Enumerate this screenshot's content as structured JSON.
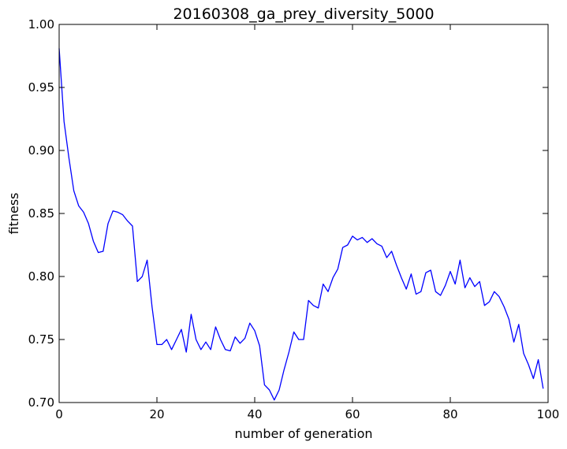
{
  "chart_data": {
    "type": "line",
    "title": "20160308_ga_prey_diversity_5000",
    "xlabel": "number of generation",
    "ylabel": "fitness",
    "xlim": [
      0,
      100
    ],
    "ylim": [
      0.7,
      1.0
    ],
    "xticks": [
      0,
      20,
      40,
      60,
      80,
      100
    ],
    "xtick_labels": [
      "0",
      "20",
      "40",
      "60",
      "80",
      "100"
    ],
    "yticks": [
      0.7,
      0.75,
      0.8,
      0.85,
      0.9,
      0.95,
      1.0
    ],
    "ytick_labels": [
      "0.70",
      "0.75",
      "0.80",
      "0.85",
      "0.90",
      "0.95",
      "1.00"
    ],
    "grid": false,
    "line_color": "#0000ff",
    "x": [
      0,
      1,
      2,
      3,
      4,
      5,
      6,
      7,
      8,
      9,
      10,
      11,
      12,
      13,
      14,
      15,
      16,
      17,
      18,
      19,
      20,
      21,
      22,
      23,
      24,
      25,
      26,
      27,
      28,
      29,
      30,
      31,
      32,
      33,
      34,
      35,
      36,
      37,
      38,
      39,
      40,
      41,
      42,
      43,
      44,
      45,
      46,
      47,
      48,
      49,
      50,
      51,
      52,
      53,
      54,
      55,
      56,
      57,
      58,
      59,
      60,
      61,
      62,
      63,
      64,
      65,
      66,
      67,
      68,
      69,
      70,
      71,
      72,
      73,
      74,
      75,
      76,
      77,
      78,
      79,
      80,
      81,
      82,
      83,
      84,
      85,
      86,
      87,
      88,
      89,
      90,
      91,
      92,
      93,
      94,
      95,
      96,
      97,
      98,
      99
    ],
    "values": [
      0.981,
      0.923,
      0.894,
      0.868,
      0.856,
      0.851,
      0.842,
      0.828,
      0.819,
      0.82,
      0.842,
      0.852,
      0.851,
      0.849,
      0.844,
      0.84,
      0.796,
      0.8,
      0.813,
      0.776,
      0.746,
      0.746,
      0.75,
      0.742,
      0.75,
      0.758,
      0.74,
      0.77,
      0.75,
      0.742,
      0.748,
      0.742,
      0.76,
      0.75,
      0.742,
      0.741,
      0.752,
      0.747,
      0.751,
      0.763,
      0.757,
      0.745,
      0.714,
      0.71,
      0.702,
      0.71,
      0.726,
      0.74,
      0.756,
      0.75,
      0.75,
      0.781,
      0.777,
      0.775,
      0.794,
      0.788,
      0.799,
      0.806,
      0.823,
      0.825,
      0.832,
      0.829,
      0.831,
      0.827,
      0.83,
      0.826,
      0.824,
      0.815,
      0.82,
      0.809,
      0.799,
      0.79,
      0.802,
      0.786,
      0.788,
      0.803,
      0.805,
      0.788,
      0.785,
      0.793,
      0.804,
      0.794,
      0.813,
      0.791,
      0.799,
      0.792,
      0.796,
      0.777,
      0.78,
      0.788,
      0.784,
      0.776,
      0.766,
      0.748,
      0.762,
      0.739,
      0.73,
      0.719,
      0.734,
      0.711
    ]
  }
}
